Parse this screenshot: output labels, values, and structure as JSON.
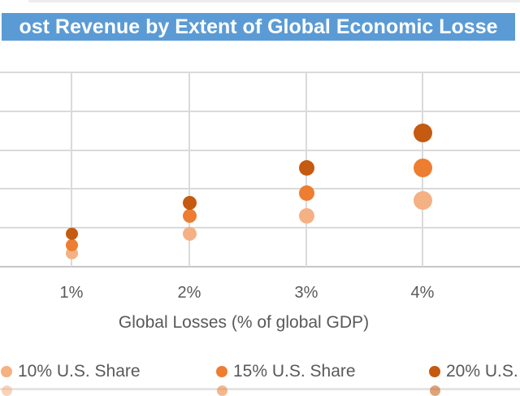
{
  "title": {
    "text": "ost Revenue by Extent of Global Economic Losse",
    "bg_color": "#5b9bd5",
    "text_color": "#ffffff",
    "cropped": true
  },
  "chart_data": {
    "type": "scatter",
    "title": "ost Revenue by Extent of Global Economic Losse",
    "xlabel": "Global Losses (% of global GDP)",
    "ylabel": "",
    "x_categories": [
      "1%",
      "2%",
      "3%",
      "4%"
    ],
    "y_axis_tick_labels_visible": false,
    "y_scale_note": "values in gridline units; 5 equal gridline intervals above baseline",
    "ylim": [
      0,
      5
    ],
    "grid": true,
    "legend_position": "bottom",
    "series": [
      {
        "name": "10% U.S. Share",
        "color": "#f4b183",
        "values": [
          0.35,
          0.85,
          1.3,
          1.7
        ]
      },
      {
        "name": "15% U.S. Share",
        "color": "#ed7d31",
        "values": [
          0.55,
          1.3,
          1.9,
          2.55
        ]
      },
      {
        "name": "20% U.S.",
        "color": "#c55a11",
        "values": [
          0.85,
          1.65,
          2.55,
          3.45
        ]
      }
    ],
    "marker_diameter_px_by_category": [
      15,
      17,
      19,
      23
    ]
  },
  "legend": {
    "items": [
      {
        "label": "10% U.S. Share",
        "color": "#f4b183"
      },
      {
        "label": "15% U.S. Share",
        "color": "#ed7d31"
      },
      {
        "label": "20% U.S.",
        "color": "#c55a11",
        "label_truncated": true
      }
    ]
  },
  "colors": {
    "gridline": "#dadada",
    "axis_line": "#c6c6c6",
    "tick_text": "#595959",
    "banner_blue": "#5b9bd5"
  }
}
